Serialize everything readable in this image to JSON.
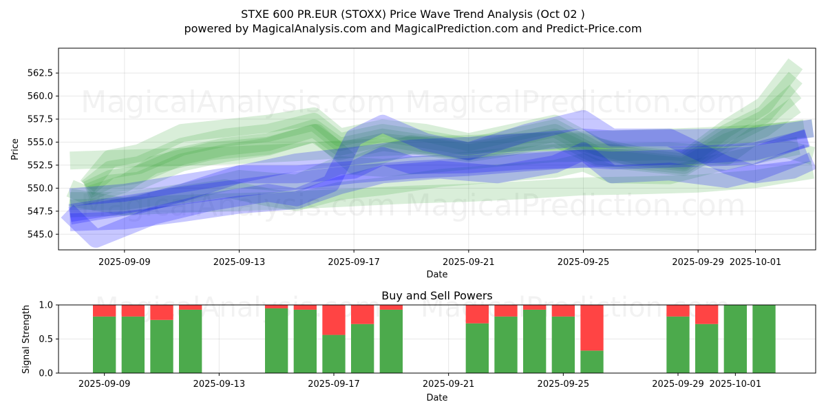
{
  "chart_data": [
    {
      "type": "line",
      "title": "STXE 600 PR.EUR (STOXX) Price Wave Trend Analysis (Oct 02 )",
      "subtitle": "powered by MagicalAnalysis.com and MagicalPrediction.com and Predict-Price.com",
      "xlabel": "Date",
      "ylabel": "Price",
      "ylim": [
        543.3,
        565.2
      ],
      "xlim_days": [
        -2.3,
        24.1
      ],
      "x_ticks": [
        {
          "day": 0,
          "label": "2025-09-09"
        },
        {
          "day": 4,
          "label": "2025-09-13"
        },
        {
          "day": 8,
          "label": "2025-09-17"
        },
        {
          "day": 12,
          "label": "2025-09-21"
        },
        {
          "day": 16,
          "label": "2025-09-25"
        },
        {
          "day": 20,
          "label": "2025-09-29"
        },
        {
          "day": 22,
          "label": "2025-10-01"
        }
      ],
      "y_ticks": [
        545.0,
        547.5,
        550.0,
        552.5,
        555.0,
        557.5,
        560.0,
        562.5
      ],
      "grid": true,
      "watermarks": [
        "MagicalAnalysis.com",
        "MagicalPrediction.com"
      ],
      "series": [
        {
          "name": "green-band-1",
          "color": "#2ca02c",
          "x": [
            -1.9,
            0,
            2,
            4,
            6,
            7.5,
            9,
            11,
            13,
            15,
            17,
            19,
            21,
            23,
            24.0
          ],
          "values": [
            548.6,
            548.6,
            549.5,
            551.0,
            550.5,
            552.5,
            552.2,
            552.7,
            553.3,
            553.8,
            553.9,
            554.0,
            553.6,
            554.3,
            553.5
          ]
        },
        {
          "name": "green-band-2",
          "color": "#2ca02c",
          "x": [
            -1.9,
            -1.3,
            0,
            1,
            3,
            5,
            6.7,
            8,
            10,
            12,
            14,
            16,
            17.5,
            19,
            21,
            22,
            23.7
          ],
          "values": [
            550.0,
            549.2,
            550.5,
            552.5,
            554.0,
            554.6,
            556.0,
            552.5,
            554.8,
            554.0,
            555.0,
            555.0,
            553.5,
            553.5,
            553.5,
            555.8,
            556.5
          ]
        },
        {
          "name": "green-band-3",
          "color": "#2ca02c",
          "x": [
            -1.9,
            0,
            2,
            3.5,
            5,
            6,
            7.5,
            9,
            11,
            13,
            15,
            16,
            17,
            19,
            20.5,
            22,
            23.5
          ],
          "values": [
            549.0,
            548.0,
            549.3,
            550.0,
            549.0,
            548.5,
            549.7,
            550.2,
            551.1,
            551.6,
            552.1,
            552.8,
            551.5,
            551.4,
            552.6,
            553.6,
            554.6
          ]
        },
        {
          "name": "green-band-4",
          "color": "#2ca02c",
          "x": [
            -1.9,
            0,
            2,
            4,
            6,
            8,
            10,
            12,
            14,
            16,
            18,
            20,
            22,
            24.0
          ],
          "values": [
            553.0,
            553.2,
            553.4,
            553.6,
            553.9,
            554.3,
            554.6,
            554.8,
            555.0,
            555.2,
            555.4,
            555.6,
            555.9,
            556.5
          ]
        },
        {
          "name": "green-band-5",
          "color": "#2ca02c",
          "x": [
            -1.9,
            0,
            2,
            4,
            6,
            8,
            10,
            12,
            14,
            16,
            18,
            20,
            22,
            24.0
          ],
          "values": [
            547.8,
            548.0,
            548.3,
            548.5,
            548.7,
            549.0,
            549.3,
            549.5,
            549.8,
            550.2,
            550.3,
            550.5,
            551.0,
            552.0
          ]
        },
        {
          "name": "green-band-6",
          "color": "#2ca02c",
          "x": [
            -1.3,
            -0.5,
            0.5,
            2,
            3.5,
            5,
            6.6,
            7.5,
            9,
            10.5,
            12,
            13.5,
            15,
            16.5,
            18,
            19.5,
            21,
            22.3,
            23.4
          ],
          "values": [
            550.2,
            553.2,
            553.8,
            556.0,
            556.5,
            557.0,
            557.8,
            555.5,
            556.5,
            556.0,
            555.0,
            556.0,
            557.0,
            554.5,
            553.5,
            553.0,
            556.5,
            559.0,
            563.5
          ]
        },
        {
          "name": "green-band-7",
          "color": "#2ca02c",
          "x": [
            -1.3,
            -0.5,
            0.5,
            2,
            3.5,
            5,
            6.6,
            7.5,
            9,
            10.5,
            12,
            13.5,
            15,
            16.5,
            18,
            19.5,
            21,
            22.3,
            23.4
          ],
          "values": [
            550.0,
            552.0,
            552.5,
            554.5,
            555.5,
            556.0,
            557.2,
            555.0,
            556.0,
            555.3,
            554.5,
            555.5,
            556.5,
            554.0,
            553.3,
            552.8,
            556.0,
            558.0,
            562.0
          ]
        },
        {
          "name": "green-band-8",
          "color": "#2ca02c",
          "x": [
            -1.3,
            -0.5,
            0.5,
            2,
            3.5,
            5,
            6.6,
            7.5,
            9,
            10.5,
            12,
            13.5,
            15,
            16.5,
            18,
            19.5,
            21,
            22.3,
            23.4
          ],
          "values": [
            549.8,
            551.0,
            551.5,
            553.5,
            554.5,
            555.0,
            556.5,
            554.5,
            555.5,
            554.8,
            554.0,
            555.0,
            556.0,
            553.5,
            553.0,
            552.5,
            555.5,
            557.5,
            560.5
          ]
        },
        {
          "name": "green-band-9",
          "color": "#2ca02c",
          "x": [
            -1.3,
            -0.5,
            0.5,
            2,
            3.5,
            5,
            6.6,
            7.5,
            9,
            10.5,
            12,
            13.5,
            15,
            16.5,
            18,
            19.5,
            21,
            22.3,
            23.4
          ],
          "values": [
            549.5,
            550.5,
            550.8,
            552.8,
            553.8,
            554.5,
            556.0,
            554.0,
            555.0,
            554.5,
            553.8,
            554.5,
            555.5,
            553.3,
            552.8,
            552.3,
            555.0,
            556.5,
            559.0
          ]
        },
        {
          "name": "blue-band-1",
          "color": "#0000ff",
          "x": [
            -2.0,
            -1.0,
            1,
            3,
            5,
            6,
            7.2,
            8,
            9,
            10.5,
            12,
            14,
            16,
            17,
            19,
            21,
            22,
            23.3,
            24.0
          ],
          "values": [
            547.5,
            544.5,
            547.0,
            548.5,
            549.5,
            549.0,
            550.5,
            555.5,
            557.0,
            555.0,
            554.0,
            556.0,
            557.5,
            555.5,
            555.5,
            552.5,
            551.5,
            552.0,
            553.0
          ]
        },
        {
          "name": "blue-band-2",
          "color": "#0000ff",
          "x": [
            -1.9,
            0,
            2,
            4,
            6,
            8,
            10,
            12,
            14,
            16,
            18,
            20,
            22,
            23.8
          ],
          "values": [
            547.3,
            548.2,
            549.2,
            550.0,
            550.8,
            551.5,
            552.0,
            552.3,
            552.8,
            553.2,
            553.4,
            553.6,
            554.0,
            555.4
          ]
        },
        {
          "name": "blue-band-3",
          "color": "#0000ff",
          "x": [
            -1.9,
            -1.0,
            0.5,
            2,
            4,
            6,
            8,
            10,
            12,
            14,
            16,
            17,
            19,
            21,
            22,
            24.0
          ],
          "values": [
            547.0,
            547.5,
            548.2,
            549.5,
            551.5,
            552.8,
            553.5,
            554.3,
            554.6,
            555.0,
            555.5,
            555.3,
            555.4,
            555.5,
            555.6,
            556.5
          ]
        },
        {
          "name": "blue-band-4",
          "color": "#0000ff",
          "x": [
            -1.9,
            0,
            2,
            4,
            6,
            7.5,
            9,
            11,
            13,
            15,
            16,
            17,
            19,
            21,
            22,
            23.8
          ],
          "values": [
            546.3,
            546.5,
            547.3,
            548.2,
            548.7,
            550.3,
            551.5,
            552.0,
            551.5,
            552.6,
            554.0,
            551.5,
            551.8,
            551.0,
            551.7,
            553.8
          ]
        },
        {
          "name": "blue-band-5",
          "color": "#0000ff",
          "x": [
            -1.9,
            0,
            2,
            4,
            6,
            8,
            9,
            10,
            12,
            14,
            16,
            17,
            19,
            21,
            22,
            23.8
          ],
          "values": [
            549.0,
            549.5,
            550.5,
            551.5,
            551.5,
            552.0,
            553.5,
            552.5,
            552.6,
            553.0,
            553.2,
            553.0,
            553.2,
            553.4,
            553.6,
            555.5
          ]
        }
      ]
    },
    {
      "type": "bar",
      "stacked": true,
      "title": "Buy and Sell Powers",
      "xlabel": "Date",
      "ylabel": "Signal Strength",
      "ylim": [
        0.0,
        1.0
      ],
      "xlim_days": [
        -1.6,
        24.8
      ],
      "x_ticks": [
        {
          "day": 0,
          "label": "2025-09-09"
        },
        {
          "day": 4,
          "label": "2025-09-13"
        },
        {
          "day": 8,
          "label": "2025-09-17"
        },
        {
          "day": 12,
          "label": "2025-09-21"
        },
        {
          "day": 16,
          "label": "2025-09-25"
        },
        {
          "day": 20,
          "label": "2025-09-29"
        },
        {
          "day": 22,
          "label": "2025-10-01"
        }
      ],
      "y_ticks": [
        "0.0",
        "0.5",
        "1.0"
      ],
      "watermarks": [
        "MagicalAnalysis.com",
        "MagicalPrediction.com"
      ],
      "categories": [
        "2025-09-09",
        "2025-09-10",
        "2025-09-11",
        "2025-09-12",
        "2025-09-15",
        "2025-09-16",
        "2025-09-17",
        "2025-09-18",
        "2025-09-19",
        "2025-09-22",
        "2025-09-23",
        "2025-09-24",
        "2025-09-25",
        "2025-09-26",
        "2025-09-29",
        "2025-09-30",
        "2025-10-01",
        "2025-10-02"
      ],
      "days": [
        0,
        1,
        2,
        3,
        6,
        7,
        8,
        9,
        10,
        13,
        14,
        15,
        16,
        17,
        20,
        21,
        22,
        23
      ],
      "series": [
        {
          "name": "Buy",
          "color": "#4caa4c",
          "values": [
            0.83,
            0.83,
            0.78,
            0.93,
            0.95,
            0.93,
            0.56,
            0.72,
            0.93,
            0.73,
            0.83,
            0.93,
            0.83,
            0.33,
            0.83,
            0.72,
            1.0,
            1.0
          ]
        },
        {
          "name": "Sell",
          "color": "#ff4444",
          "values": [
            0.17,
            0.17,
            0.22,
            0.07,
            0.05,
            0.07,
            0.44,
            0.28,
            0.07,
            0.27,
            0.17,
            0.07,
            0.17,
            0.67,
            0.17,
            0.28,
            0.0,
            0.0
          ]
        }
      ]
    }
  ]
}
